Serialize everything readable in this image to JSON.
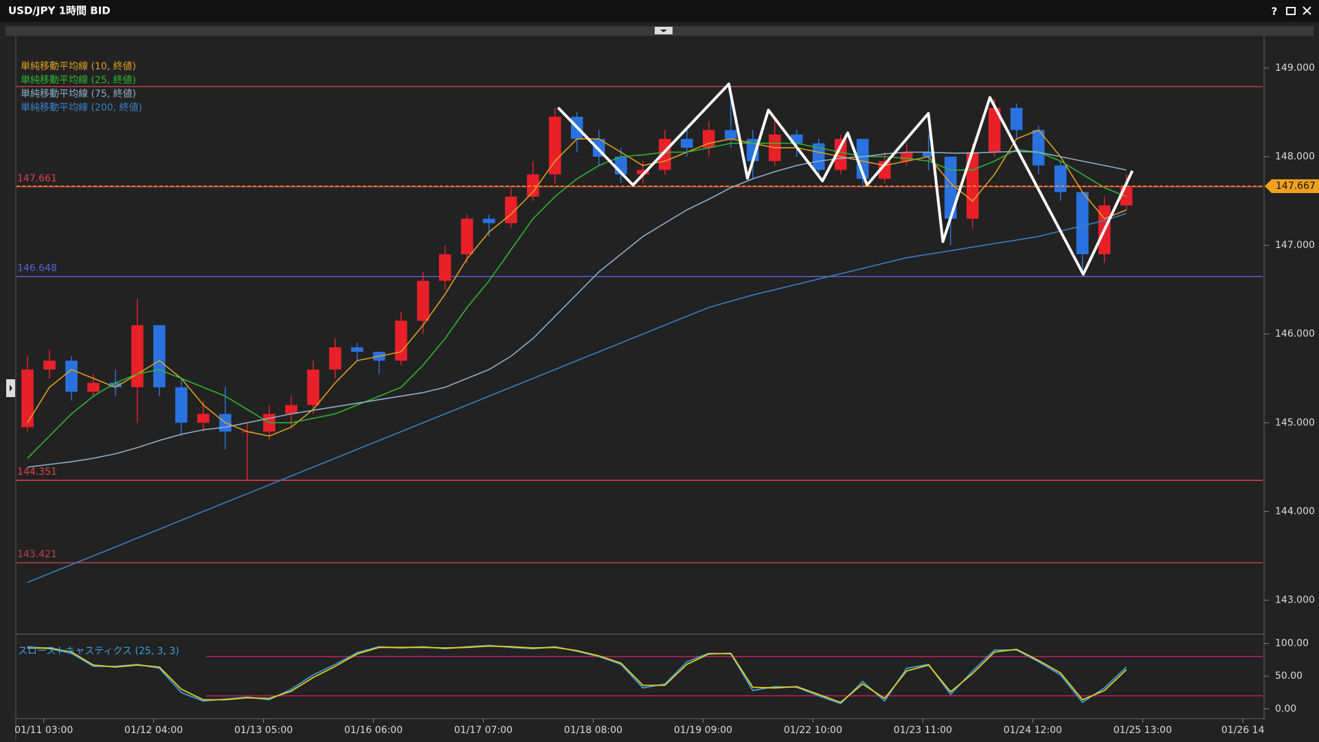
{
  "window": {
    "title": "USD/JPY 1時間 BID",
    "help": "?"
  },
  "chart_data": [
    {
      "type": "candlestick",
      "up_color": "#e8202a",
      "down_color": "#2a72e0",
      "open": [
        144.95,
        145.6,
        145.7,
        145.35,
        145.45,
        145.4,
        146.1,
        145.4,
        145.0,
        145.1,
        144.9,
        144.9,
        145.1,
        145.2,
        145.6,
        145.85,
        145.8,
        145.7,
        146.15,
        146.6,
        146.9,
        147.3,
        147.25,
        147.55,
        147.8,
        148.45,
        148.2,
        148.0,
        147.8,
        147.85,
        148.2,
        148.1,
        148.3,
        148.2,
        147.95,
        148.25,
        148.15,
        147.85,
        148.2,
        147.75,
        147.95,
        148.05,
        148.0,
        147.3,
        148.05,
        148.55,
        148.3,
        147.9,
        147.6,
        146.9,
        147.45
      ],
      "high": [
        145.75,
        145.82,
        145.75,
        145.55,
        145.6,
        146.4,
        146.1,
        145.5,
        145.25,
        145.4,
        145.0,
        145.2,
        145.3,
        145.7,
        145.95,
        145.9,
        145.8,
        146.25,
        146.7,
        147.0,
        147.35,
        147.35,
        147.65,
        147.95,
        148.55,
        148.5,
        148.3,
        148.1,
        147.95,
        148.3,
        148.3,
        148.4,
        148.8,
        148.3,
        148.45,
        148.3,
        148.2,
        148.25,
        148.2,
        148.05,
        148.15,
        148.25,
        148.0,
        148.15,
        148.65,
        148.6,
        148.35,
        147.95,
        147.6,
        147.55,
        147.8
      ],
      "low": [
        144.9,
        145.5,
        145.25,
        145.3,
        145.3,
        145.0,
        145.3,
        144.85,
        144.9,
        144.7,
        144.35,
        144.8,
        144.95,
        145.1,
        145.5,
        145.7,
        145.55,
        145.65,
        146.0,
        146.5,
        146.8,
        147.1,
        147.2,
        147.5,
        147.7,
        148.05,
        147.9,
        147.7,
        147.7,
        147.8,
        148.0,
        148.0,
        148.1,
        147.75,
        147.9,
        148.0,
        147.75,
        147.8,
        147.65,
        147.7,
        147.9,
        147.85,
        147.0,
        147.2,
        148.0,
        148.2,
        147.8,
        147.5,
        146.72,
        146.8,
        147.4
      ],
      "close": [
        145.6,
        145.7,
        145.35,
        145.45,
        145.4,
        146.1,
        145.4,
        145.0,
        145.1,
        144.9,
        144.9,
        145.1,
        145.2,
        145.6,
        145.85,
        145.8,
        145.7,
        146.15,
        146.6,
        146.9,
        147.3,
        147.25,
        147.55,
        147.8,
        148.45,
        148.2,
        148.0,
        147.8,
        147.85,
        148.2,
        148.1,
        148.3,
        148.2,
        147.95,
        148.25,
        148.15,
        147.85,
        148.2,
        147.75,
        147.95,
        148.05,
        148.0,
        147.3,
        148.05,
        148.55,
        148.3,
        147.9,
        147.6,
        146.9,
        147.45,
        147.67
      ],
      "xlim": [
        0,
        56.7
      ],
      "xticks": [
        {
          "value": 1.24,
          "label": "01/11 03:00"
        },
        {
          "value": 6.24,
          "label": "01/12 04:00"
        },
        {
          "value": 11.24,
          "label": "01/13 05:00"
        },
        {
          "value": 16.24,
          "label": "01/16 06:00"
        },
        {
          "value": 21.24,
          "label": "01/17 07:00"
        },
        {
          "value": 26.24,
          "label": "01/18 08:00"
        },
        {
          "value": 31.24,
          "label": "01/19 09:00"
        },
        {
          "value": 36.24,
          "label": "01/22 10:00"
        },
        {
          "value": 41.24,
          "label": "01/23 11:00"
        },
        {
          "value": 46.24,
          "label": "01/24 12:00"
        },
        {
          "value": 51.24,
          "label": "01/25 13:00"
        },
        {
          "value": 55.8,
          "label": "01/26 14"
        }
      ],
      "ylim": [
        142.64,
        149.34
      ],
      "yticks": [
        {
          "value": 143,
          "label": "143.000"
        },
        {
          "value": 144,
          "label": "144.000"
        },
        {
          "value": 145,
          "label": "145.000"
        },
        {
          "value": 146,
          "label": "146.000"
        },
        {
          "value": 147,
          "label": "147.000"
        },
        {
          "value": 148,
          "label": "148.000"
        },
        {
          "value": 149,
          "label": "149.000"
        }
      ],
      "series": [
        {
          "name": "単純移動平均線 (10, 終値)",
          "color": "#e0a020",
          "values": [
            145.0,
            145.4,
            145.6,
            145.5,
            145.4,
            145.55,
            145.7,
            145.5,
            145.2,
            145.0,
            144.9,
            144.85,
            144.95,
            145.15,
            145.45,
            145.7,
            145.75,
            145.8,
            146.1,
            146.45,
            146.85,
            147.15,
            147.35,
            147.6,
            147.95,
            148.2,
            148.2,
            148.05,
            147.9,
            147.95,
            148.05,
            148.15,
            148.2,
            148.15,
            148.1,
            148.1,
            148.05,
            148.0,
            147.95,
            147.9,
            147.95,
            148.0,
            147.7,
            147.5,
            147.8,
            148.2,
            148.3,
            148.0,
            147.6,
            147.3,
            147.4
          ]
        },
        {
          "name": "単純移動平均線 (25, 終値)",
          "color": "#2db82d",
          "values": [
            144.6,
            144.85,
            145.1,
            145.3,
            145.45,
            145.55,
            145.6,
            145.5,
            145.4,
            145.3,
            145.15,
            145.0,
            145.0,
            145.05,
            145.1,
            145.2,
            145.3,
            145.4,
            145.65,
            145.95,
            146.3,
            146.6,
            146.95,
            147.3,
            147.55,
            147.75,
            147.9,
            148.0,
            148.02,
            148.05,
            148.05,
            148.1,
            148.15,
            148.15,
            148.15,
            148.15,
            148.1,
            148.05,
            148.0,
            148.0,
            147.98,
            147.95,
            147.85,
            147.85,
            147.95,
            148.08,
            148.05,
            147.95,
            147.8,
            147.65,
            147.55
          ]
        },
        {
          "name": "単純移動平均線 (75, 終値)",
          "color": "#8fb0cc",
          "values": [
            144.5,
            144.53,
            144.56,
            144.6,
            144.65,
            144.72,
            144.8,
            144.87,
            144.92,
            144.95,
            145.0,
            145.05,
            145.1,
            145.14,
            145.18,
            145.22,
            145.26,
            145.3,
            145.34,
            145.4,
            145.5,
            145.6,
            145.75,
            145.95,
            146.2,
            146.45,
            146.7,
            146.9,
            147.1,
            147.25,
            147.4,
            147.52,
            147.65,
            147.75,
            147.83,
            147.9,
            147.95,
            147.98,
            148.0,
            148.03,
            148.05,
            148.05,
            148.04,
            148.04,
            148.05,
            148.06,
            148.05,
            148.0,
            147.95,
            147.9,
            147.85
          ]
        },
        {
          "name": "単純移動平均線 (200, 終値)",
          "color": "#3a80c8",
          "values": [
            143.2,
            143.3,
            143.4,
            143.5,
            143.6,
            143.7,
            143.8,
            143.9,
            144.0,
            144.1,
            144.2,
            144.3,
            144.4,
            144.5,
            144.6,
            144.7,
            144.8,
            144.9,
            145.0,
            145.1,
            145.2,
            145.3,
            145.4,
            145.5,
            145.6,
            145.7,
            145.8,
            145.9,
            146.0,
            146.1,
            146.2,
            146.3,
            146.37,
            146.44,
            146.5,
            146.56,
            146.62,
            146.68,
            146.74,
            146.8,
            146.86,
            146.9,
            146.94,
            146.98,
            147.02,
            147.06,
            147.1,
            147.16,
            147.22,
            147.28,
            147.36
          ]
        }
      ],
      "upper_line": {
        "value": 148.79,
        "color": "#c0404a"
      },
      "levels": [
        {
          "value": 147.661,
          "color": "#e04050"
        },
        {
          "value": 146.648,
          "color": "#6060d8"
        },
        {
          "value": 144.351,
          "color": "#e84050"
        },
        {
          "value": 143.421,
          "color": "#c04050"
        }
      ],
      "last_price": {
        "value": 147.667,
        "color": "#f0a020"
      },
      "trend_lines": {
        "color": "#ffffff",
        "x": [
          24.64,
          28.05,
          32.41,
          33.26,
          34.21,
          36.67,
          37.82,
          38.7,
          41.49,
          42.15,
          44.29,
          48.54,
          50.77
        ],
        "values": [
          148.553,
          147.679,
          148.819,
          147.755,
          148.525,
          147.726,
          148.268,
          147.679,
          148.487,
          147.042,
          148.667,
          146.673,
          147.84
        ]
      }
    },
    {
      "type": "line",
      "title": "スローストキャスティクス (25, 3, 3)",
      "title_color": "#3aa0e0",
      "ylim": [
        -12.8,
        109
      ],
      "yticks": [
        {
          "value": 0,
          "label": "0.00"
        },
        {
          "value": 50,
          "label": "50.00"
        },
        {
          "value": 100,
          "label": "100.00"
        }
      ],
      "bands": [
        80,
        20
      ],
      "band_color": "#c02060",
      "series": [
        {
          "color": "#3aa0e0",
          "values": [
            95,
            92,
            85,
            65,
            65,
            68,
            62,
            25,
            12,
            15,
            18,
            14,
            30,
            52,
            68,
            86,
            95,
            93,
            95,
            92,
            95,
            97,
            94,
            92,
            95,
            88,
            80,
            68,
            32,
            38,
            72,
            85,
            84,
            28,
            34,
            33,
            20,
            8,
            42,
            12,
            62,
            68,
            22,
            58,
            90,
            90,
            72,
            52,
            10,
            32,
            64
          ]
        },
        {
          "color": "#e8d020",
          "values": [
            93,
            93,
            87,
            67,
            64,
            67,
            64,
            30,
            14,
            14,
            17,
            16,
            27,
            48,
            65,
            84,
            94,
            94,
            94,
            93,
            94,
            96,
            95,
            93,
            94,
            89,
            81,
            70,
            36,
            36,
            68,
            84,
            85,
            33,
            32,
            34,
            22,
            10,
            38,
            16,
            58,
            67,
            26,
            54,
            87,
            91,
            74,
            55,
            14,
            28,
            60
          ]
        }
      ]
    }
  ]
}
